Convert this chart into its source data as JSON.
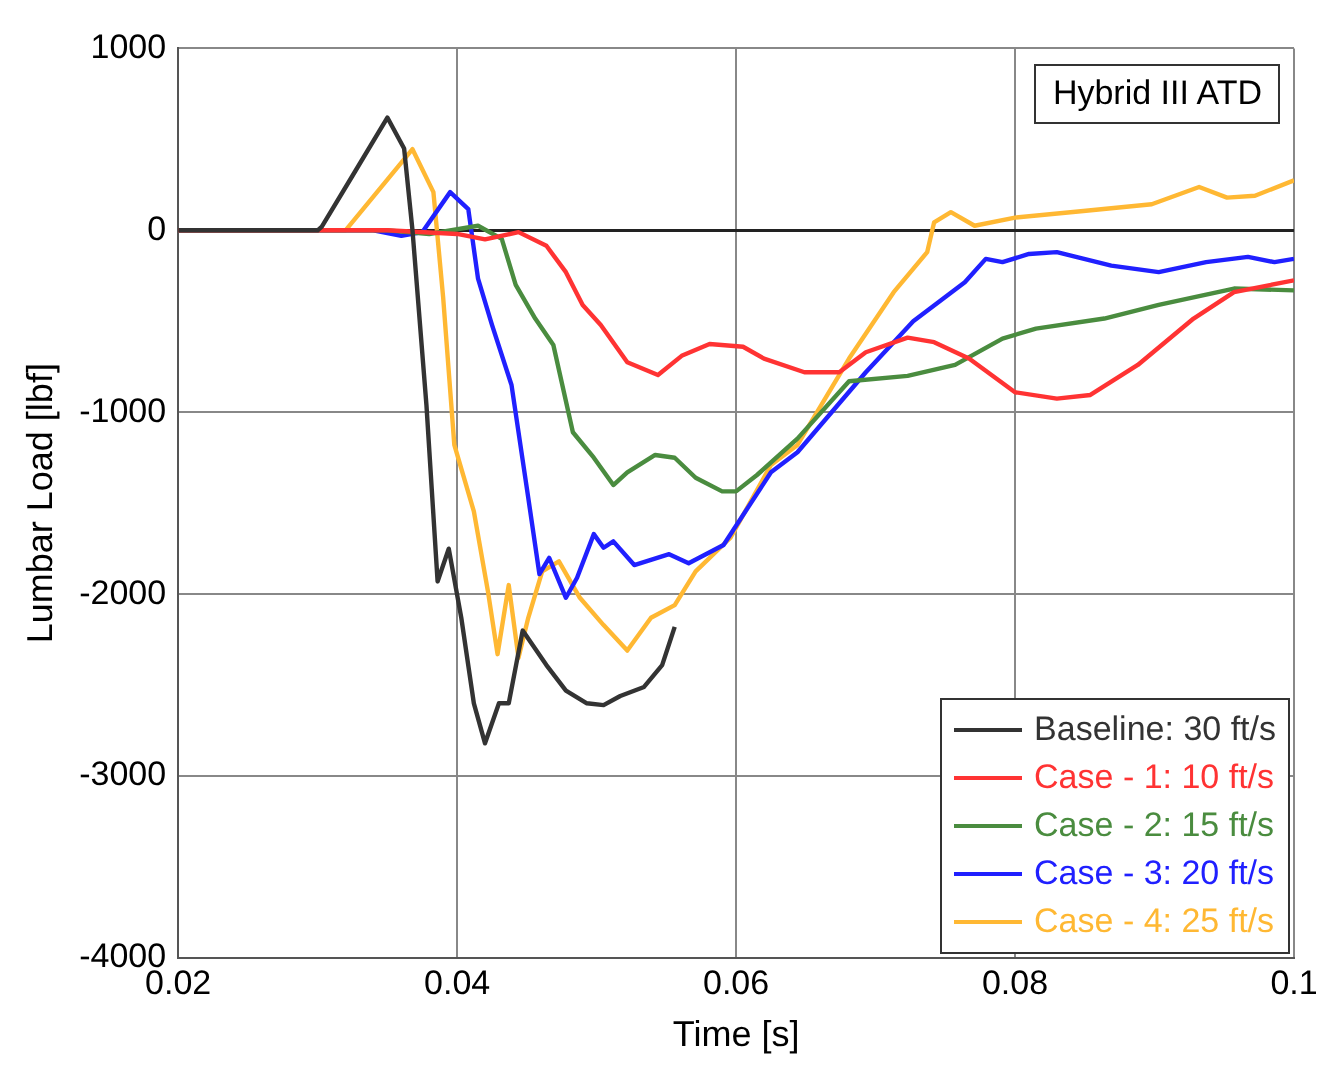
{
  "chart_data": {
    "type": "line",
    "xlabel": "Time [s]",
    "ylabel": "Lumbar Load [lbf]",
    "annotations": [
      "Hybrid III ATD"
    ],
    "xlim": [
      0.02,
      0.1
    ],
    "xticks": [
      0.02,
      0.04,
      0.06,
      0.08,
      0.1
    ],
    "ylim": [
      -4000,
      1000
    ],
    "yticks": [
      -4000,
      -3000,
      -2000,
      -1000,
      0,
      1000
    ],
    "grid": true,
    "legend": "bottom right",
    "marker": "none",
    "line_style": "solid",
    "series": [
      {
        "name": "Baseline: 30 ft/s",
        "color": "#333333",
        "x": [
          0.02,
          0.03,
          0.0303,
          0.0325,
          0.035,
          0.0362,
          0.0368,
          0.0378,
          0.0386,
          0.0394,
          0.0403,
          0.0412,
          0.042,
          0.043,
          0.0437,
          0.0447,
          0.0464,
          0.0478,
          0.0493,
          0.0505,
          0.0517,
          0.0534,
          0.0547,
          0.0556
        ],
        "values": [
          0,
          0,
          20,
          300,
          620,
          450,
          0,
          -960,
          -1930,
          -1750,
          -2130,
          -2600,
          -2820,
          -2600,
          -2600,
          -2200,
          -2390,
          -2530,
          -2600,
          -2610,
          -2560,
          -2510,
          -2390,
          -2180
        ]
      },
      {
        "name": "Case - 1: 10 ft/s",
        "color": "#ff3333",
        "x": [
          0.02,
          0.035,
          0.04,
          0.042,
          0.0444,
          0.0464,
          0.0478,
          0.049,
          0.0503,
          0.0522,
          0.0544,
          0.0561,
          0.0581,
          0.0605,
          0.062,
          0.0649,
          0.0674,
          0.0693,
          0.0723,
          0.0742,
          0.0767,
          0.08,
          0.083,
          0.0854,
          0.0888,
          0.0928,
          0.0957,
          0.1
        ],
        "values": [
          0,
          0,
          -20,
          -50,
          -10,
          -85,
          -230,
          -410,
          -520,
          -725,
          -795,
          -690,
          -625,
          -640,
          -705,
          -780,
          -780,
          -670,
          -590,
          -615,
          -705,
          -890,
          -925,
          -905,
          -740,
          -485,
          -340,
          -275
        ]
      },
      {
        "name": "Case - 2: 15 ft/s",
        "color": "#4a8c3f",
        "x": [
          0.02,
          0.035,
          0.038,
          0.0415,
          0.0432,
          0.0442,
          0.0456,
          0.0469,
          0.0483,
          0.0498,
          0.0512,
          0.0522,
          0.0542,
          0.0556,
          0.0571,
          0.059,
          0.06,
          0.0615,
          0.0644,
          0.0681,
          0.0723,
          0.0757,
          0.0791,
          0.0815,
          0.0864,
          0.0903,
          0.0957,
          0.1
        ],
        "values": [
          0,
          0,
          -20,
          25,
          -47,
          -300,
          -485,
          -630,
          -1110,
          -1250,
          -1400,
          -1330,
          -1235,
          -1250,
          -1360,
          -1435,
          -1435,
          -1345,
          -1145,
          -830,
          -800,
          -740,
          -595,
          -540,
          -485,
          -410,
          -320,
          -330
        ]
      },
      {
        "name": "Case - 3: 20 ft/s",
        "color": "#2020ff",
        "x": [
          0.02,
          0.034,
          0.036,
          0.0375,
          0.0395,
          0.0408,
          0.0415,
          0.0425,
          0.0439,
          0.0451,
          0.0459,
          0.0466,
          0.0478,
          0.0486,
          0.0498,
          0.0505,
          0.0512,
          0.0527,
          0.0552,
          0.0566,
          0.0591,
          0.0625,
          0.0644,
          0.0693,
          0.0727,
          0.0764,
          0.0779,
          0.0791,
          0.081,
          0.083,
          0.0869,
          0.0903,
          0.0937,
          0.0967,
          0.0986,
          0.1
        ],
        "values": [
          0,
          0,
          -30,
          -10,
          210,
          117,
          -266,
          -520,
          -850,
          -1470,
          -1890,
          -1800,
          -2020,
          -1910,
          -1670,
          -1745,
          -1710,
          -1840,
          -1780,
          -1830,
          -1730,
          -1330,
          -1220,
          -780,
          -500,
          -285,
          -157,
          -175,
          -130,
          -120,
          -194,
          -230,
          -175,
          -146,
          -175,
          -157
        ]
      },
      {
        "name": "Case - 4: 25 ft/s",
        "color": "#ffb833",
        "x": [
          0.02,
          0.032,
          0.0368,
          0.0383,
          0.039,
          0.0398,
          0.0412,
          0.0422,
          0.0429,
          0.0437,
          0.0444,
          0.0451,
          0.0461,
          0.0473,
          0.0488,
          0.0505,
          0.0522,
          0.0539,
          0.0556,
          0.0571,
          0.0596,
          0.0625,
          0.0644,
          0.0681,
          0.0713,
          0.0737,
          0.0742,
          0.0754,
          0.0771,
          0.08,
          0.0849,
          0.0898,
          0.0932,
          0.0952,
          0.0972,
          0.1
        ],
        "values": [
          0,
          0,
          446,
          210,
          -370,
          -1180,
          -1545,
          -1980,
          -2330,
          -1950,
          -2350,
          -2130,
          -1875,
          -1820,
          -2020,
          -2170,
          -2310,
          -2130,
          -2060,
          -1875,
          -1690,
          -1290,
          -1180,
          -705,
          -340,
          -120,
          44,
          100,
          25,
          70,
          106,
          143,
          238,
          180,
          190,
          275
        ]
      }
    ]
  }
}
